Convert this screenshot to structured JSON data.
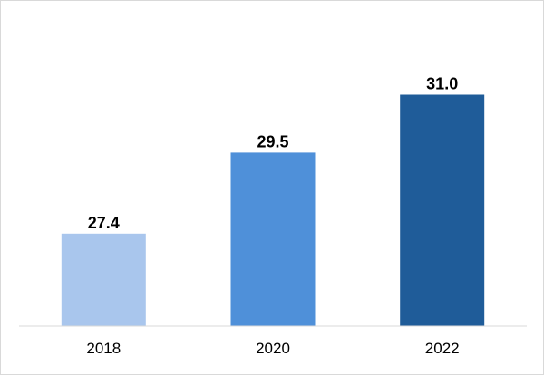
{
  "chart_data": {
    "type": "bar",
    "categories": [
      "2018",
      "2020",
      "2022"
    ],
    "values": [
      27.4,
      29.5,
      31.0
    ],
    "value_labels": [
      "27.4",
      "29.5",
      "31.0"
    ],
    "bar_colors": [
      "#a9c6ed",
      "#4f90d9",
      "#1f5c99"
    ],
    "baseline_value": 25.0,
    "ylim": [
      25.0,
      31.6
    ],
    "grid": false,
    "legend": "none",
    "axis_color": "#d9d9d9"
  }
}
